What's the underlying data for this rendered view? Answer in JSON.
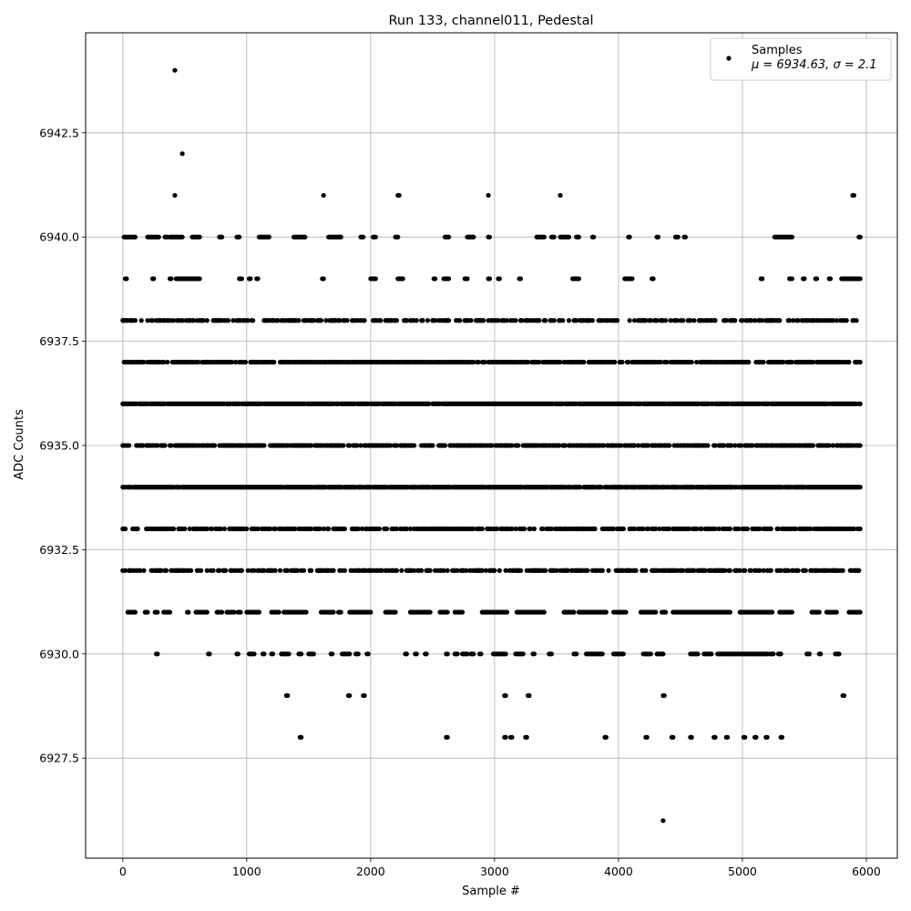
{
  "chart_data": {
    "type": "scatter",
    "title": "Run 133, channel011, Pedestal",
    "xlabel": "Sample #",
    "ylabel": "ADC Counts",
    "xlim": [
      -300,
      6250
    ],
    "ylim": [
      6925.1,
      6944.9
    ],
    "xticks": [
      0,
      1000,
      2000,
      3000,
      4000,
      5000,
      6000
    ],
    "xtick_labels": [
      "0",
      "1000",
      "2000",
      "3000",
      "4000",
      "5000",
      "6000"
    ],
    "yticks": [
      6927.5,
      6930.0,
      6932.5,
      6935.0,
      6937.5,
      6940.0,
      6942.5
    ],
    "ytick_labels": [
      "6927.5",
      "6930.0",
      "6932.5",
      "6935.0",
      "6937.5",
      "6940.0",
      "6942.5"
    ],
    "grid": true,
    "legend": {
      "placement": "top-right",
      "entries": [
        {
          "label": "Samples",
          "sublabel": "μ = 6934.63, σ = 2.1"
        }
      ]
    },
    "series": [
      {
        "name": "Samples",
        "color": "#000000",
        "sample_count": 5950,
        "level_x_ranges": {
          "6940": [
            [
              10,
              100
            ],
            [
              200,
              290
            ],
            [
              340,
              360
            ],
            [
              380,
              480
            ],
            [
              560,
              620
            ],
            [
              780,
              800
            ],
            [
              920,
              940
            ],
            [
              1100,
              1180
            ],
            [
              1380,
              1470
            ],
            [
              1660,
              1760
            ],
            [
              1920,
              1940
            ],
            [
              2020,
              2040
            ],
            [
              2200,
              2220
            ],
            [
              2600,
              2630
            ],
            [
              2780,
              2830
            ],
            [
              2950,
              2960
            ],
            [
              3340,
              3400
            ],
            [
              3460,
              3480
            ],
            [
              3530,
              3600
            ],
            [
              3660,
              3680
            ],
            [
              3790,
              3800
            ],
            [
              4080,
              4090
            ],
            [
              4310,
              4320
            ],
            [
              4460,
              4480
            ],
            [
              4530,
              4540
            ],
            [
              5260,
              5400
            ],
            [
              5940,
              5950
            ]
          ],
          "6939": [
            [
              20,
              30
            ],
            [
              240,
              250
            ],
            [
              380,
              390
            ],
            [
              430,
              620
            ],
            [
              940,
              960
            ],
            [
              1020,
              1030
            ],
            [
              1080,
              1090
            ],
            [
              1610,
              1620
            ],
            [
              2000,
              2040
            ],
            [
              2220,
              2260
            ],
            [
              2510,
              2520
            ],
            [
              2590,
              2630
            ],
            [
              2760,
              2780
            ],
            [
              2950,
              2960
            ],
            [
              3030,
              3040
            ],
            [
              3200,
              3210
            ],
            [
              3630,
              3680
            ],
            [
              4050,
              4110
            ],
            [
              4270,
              4280
            ],
            [
              5150,
              5160
            ],
            [
              5380,
              5400
            ],
            [
              5490,
              5500
            ],
            [
              5590,
              5600
            ],
            [
              5700,
              5710
            ],
            [
              5800,
              5950
            ]
          ],
          "6938": [
            [
              0,
              5950
            ]
          ],
          "6937": [
            [
              0,
              5950
            ]
          ],
          "6936": [
            [
              0,
              5950
            ]
          ],
          "6935": [
            [
              0,
              5950
            ]
          ],
          "6934": [
            [
              0,
              5950
            ]
          ],
          "6933": [
            [
              0,
              5950
            ]
          ],
          "6932": [
            [
              0,
              5950
            ]
          ],
          "6931": [
            [
              40,
              100
            ],
            [
              180,
              200
            ],
            [
              260,
              280
            ],
            [
              330,
              380
            ],
            [
              520,
              530
            ],
            [
              590,
              680
            ],
            [
              760,
              800
            ],
            [
              840,
              900
            ],
            [
              930,
              950
            ],
            [
              1000,
              1100
            ],
            [
              1200,
              1260
            ],
            [
              1300,
              1480
            ],
            [
              1600,
              1700
            ],
            [
              1740,
              1760
            ],
            [
              1830,
              2000
            ],
            [
              2120,
              2200
            ],
            [
              2320,
              2480
            ],
            [
              2560,
              2620
            ],
            [
              2680,
              2740
            ],
            [
              2900,
              3100
            ],
            [
              3180,
              3400
            ],
            [
              3560,
              3640
            ],
            [
              3680,
              3900
            ],
            [
              3960,
              4060
            ],
            [
              4180,
              4300
            ],
            [
              4350,
              4380
            ],
            [
              4440,
              4900
            ],
            [
              4980,
              5240
            ],
            [
              5300,
              5400
            ],
            [
              5560,
              5620
            ],
            [
              5680,
              5760
            ],
            [
              5860,
              5950
            ]
          ],
          "6930": [
            [
              270,
              280
            ],
            [
              690,
              700
            ],
            [
              920,
              930
            ],
            [
              1020,
              1060
            ],
            [
              1130,
              1140
            ],
            [
              1200,
              1210
            ],
            [
              1280,
              1340
            ],
            [
              1420,
              1440
            ],
            [
              1500,
              1540
            ],
            [
              1680,
              1690
            ],
            [
              1770,
              1830
            ],
            [
              1880,
              1900
            ],
            [
              1970,
              1980
            ],
            [
              2280,
              2290
            ],
            [
              2360,
              2370
            ],
            [
              2440,
              2450
            ],
            [
              2610,
              2620
            ],
            [
              2680,
              2700
            ],
            [
              2740,
              2780
            ],
            [
              2810,
              2830
            ],
            [
              2880,
              2890
            ],
            [
              2990,
              3090
            ],
            [
              3170,
              3230
            ],
            [
              3310,
              3320
            ],
            [
              3440,
              3460
            ],
            [
              3640,
              3660
            ],
            [
              3740,
              3870
            ],
            [
              3960,
              4040
            ],
            [
              4200,
              4260
            ],
            [
              4310,
              4360
            ],
            [
              4580,
              4640
            ],
            [
              4690,
              4750
            ],
            [
              4800,
              5200
            ],
            [
              5220,
              5250
            ],
            [
              5290,
              5310
            ],
            [
              5520,
              5540
            ],
            [
              5620,
              5630
            ],
            [
              5750,
              5780
            ]
          ],
          "6929": [
            [
              1320,
              1330
            ],
            [
              1820,
              1830
            ],
            [
              1940,
              1950
            ],
            [
              3080,
              3090
            ],
            [
              3270,
              3280
            ],
            [
              4360,
              4370
            ],
            [
              5810,
              5820
            ]
          ],
          "6928": [
            [
              1430,
              1440
            ],
            [
              2610,
              2620
            ],
            [
              3080,
              3090
            ],
            [
              3130,
              3140
            ],
            [
              3250,
              3260
            ],
            [
              3890,
              3900
            ],
            [
              4220,
              4230
            ],
            [
              4430,
              4440
            ],
            [
              4580,
              4590
            ],
            [
              4770,
              4780
            ],
            [
              4870,
              4880
            ],
            [
              5010,
              5020
            ],
            [
              5100,
              5110
            ],
            [
              5190,
              5200
            ],
            [
              5310,
              5320
            ]
          ]
        },
        "outliers": [
          {
            "x": 420,
            "y": 6944
          },
          {
            "x": 480,
            "y": 6942
          },
          {
            "x": 420,
            "y": 6941
          },
          {
            "x": 1620,
            "y": 6941
          },
          {
            "x": 2220,
            "y": 6941
          },
          {
            "x": 2230,
            "y": 6941
          },
          {
            "x": 2950,
            "y": 6941
          },
          {
            "x": 3530,
            "y": 6941
          },
          {
            "x": 5890,
            "y": 6941
          },
          {
            "x": 5900,
            "y": 6941
          },
          {
            "x": 4360,
            "y": 6926
          }
        ]
      }
    ]
  }
}
